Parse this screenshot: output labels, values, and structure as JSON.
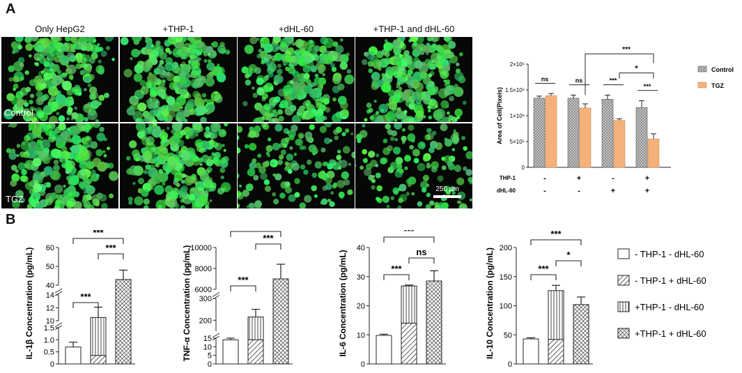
{
  "panel_a": {
    "letter": "A",
    "columns": [
      "Only HepG2",
      "+THP-1",
      "+dHL-60",
      "+THP-1 and dHL-60"
    ],
    "rows": [
      "Control",
      "TGZ"
    ],
    "scale_bar": "250 μm"
  },
  "panel_b": {
    "letter": "B"
  },
  "chart_data": [
    {
      "id": "area",
      "type": "bar",
      "ylabel": "Area of Cell(Pixels)",
      "yticks": [
        "0",
        "5×10⁵",
        "1×10⁶",
        "1.5×10⁶",
        "2×10⁶"
      ],
      "ylim": [
        0,
        2000000
      ],
      "legend": [
        "Control",
        "TGZ"
      ],
      "legend_position": "right",
      "colors": {
        "Control": "#d0d0d0",
        "TGZ": "#f4b27a"
      },
      "conditions": [
        {
          "thp1": "-",
          "dhl60": "-",
          "control": 1340000,
          "tgz": 1390000,
          "control_err": 40000,
          "tgz_err": 40000
        },
        {
          "thp1": "+",
          "dhl60": "-",
          "control": 1340000,
          "tgz": 1150000,
          "control_err": 60000,
          "tgz_err": 80000
        },
        {
          "thp1": "-",
          "dhl60": "+",
          "control": 1320000,
          "tgz": 910000,
          "control_err": 80000,
          "tgz_err": 30000
        },
        {
          "thp1": "+",
          "dhl60": "+",
          "control": 1160000,
          "tgz": 550000,
          "control_err": 130000,
          "tgz_err": 100000
        }
      ],
      "row_labels": [
        "THP-1",
        "dHL-60"
      ],
      "significance": [
        "ns",
        "ns",
        "***",
        "***",
        "*",
        "***"
      ]
    },
    {
      "id": "il1b",
      "type": "bar",
      "ylabel": "IL-1β Concentration (pg/mL)",
      "segments": [
        {
          "ticks": [
            "0",
            "0.5",
            "1.0",
            "1.5"
          ],
          "range": [
            0,
            1.5
          ]
        },
        {
          "ticks": [
            "10",
            "12",
            "14"
          ],
          "range": [
            10,
            14
          ]
        },
        {
          "ticks": [
            "40",
            "50",
            "60"
          ],
          "range": [
            40,
            60
          ]
        }
      ],
      "bars": [
        {
          "group": "- THP-1 - dHL-60",
          "value": 0.7,
          "err": 0.2
        },
        {
          "group": "- THP-1 + dHL-60",
          "value": 0.35,
          "stack_top": 10.5,
          "err": 1.6
        },
        {
          "group": "+THP-1 + dHL-60",
          "value": 43,
          "err": 5
        }
      ],
      "significance": [
        "***",
        "***",
        "***"
      ]
    },
    {
      "id": "tnfa",
      "type": "bar",
      "ylabel": "TNF-α Concentration (pg/mL)",
      "segments": [
        {
          "ticks": [
            "0",
            "5",
            "10",
            "15"
          ],
          "range": [
            0,
            15
          ]
        },
        {
          "ticks": [
            "200",
            "300"
          ],
          "range": [
            150,
            300
          ]
        },
        {
          "ticks": [
            "6000",
            "8000",
            "10000"
          ],
          "range": [
            6000,
            10000
          ]
        }
      ],
      "bars": [
        {
          "group": "- THP-1 - dHL-60",
          "value": 14,
          "err": 1
        },
        {
          "group": "- THP-1 + dHL-60",
          "value": 14,
          "stack_top": 215,
          "err": 35
        },
        {
          "group": "+THP-1 + dHL-60",
          "value": 7000,
          "err": 1400
        }
      ],
      "significance": [
        "***",
        "***",
        "***"
      ]
    },
    {
      "id": "il6",
      "type": "bar",
      "ylabel": "IL-6 Concentration (pg/mL)",
      "yticks": [
        "0",
        "10",
        "20",
        "30",
        "40"
      ],
      "ylim": [
        0,
        40
      ],
      "bars": [
        {
          "group": "- THP-1 - dHL-60",
          "value": 9.8,
          "err": 0.4
        },
        {
          "group": "- THP-1 + dHL-60",
          "value": 14,
          "stack_top": 26.8,
          "err": 0.3
        },
        {
          "group": "+THP-1 + dHL-60",
          "value": 28.5,
          "err": 3.5
        }
      ],
      "significance": [
        "***",
        "***",
        "ns"
      ]
    },
    {
      "id": "il10",
      "type": "bar",
      "ylabel": "IL-10 Concentration (pg/mL)",
      "yticks": [
        "0",
        "50",
        "100",
        "150",
        "200"
      ],
      "ylim": [
        0,
        200
      ],
      "bars": [
        {
          "group": "- THP-1 - dHL-60",
          "value": 43,
          "err": 2
        },
        {
          "group": "- THP-1 + dHL-60",
          "value": 42,
          "stack_top": 126,
          "err": 9
        },
        {
          "group": "+THP-1 + dHL-60",
          "value": 102,
          "err": 13
        }
      ],
      "significance": [
        "***",
        "***",
        "*"
      ]
    }
  ],
  "legend_b": [
    "- THP-1 - dHL-60",
    "- THP-1 + dHL-60",
    "+THP-1 - dHL-60",
    "+THP-1 + dHL-60"
  ]
}
